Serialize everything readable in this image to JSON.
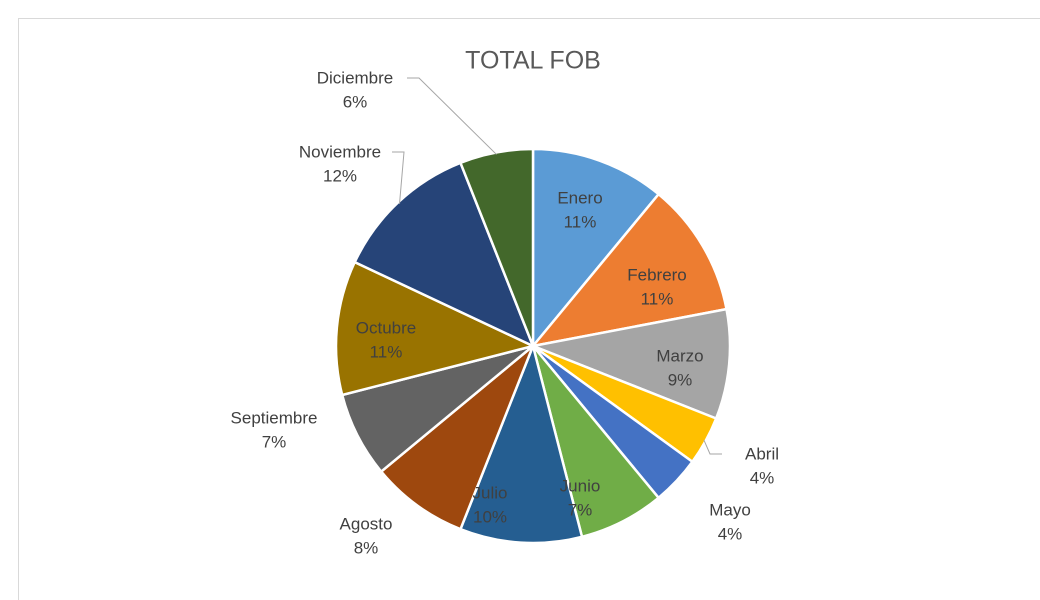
{
  "chart_data": {
    "type": "pie",
    "title": "TOTAL FOB",
    "categories": [
      "Enero",
      "Febrero",
      "Marzo",
      "Abril",
      "Mayo",
      "Junio",
      "Julio",
      "Agosto",
      "Septiembre",
      "Octubre",
      "Noviembre",
      "Diciembre"
    ],
    "values": [
      11,
      11,
      9,
      4,
      4,
      7,
      10,
      8,
      7,
      11,
      12,
      6
    ],
    "value_labels": [
      "11%",
      "11%",
      "9%",
      "4%",
      "4%",
      "7%",
      "10%",
      "8%",
      "7%",
      "11%",
      "12%",
      "6%"
    ],
    "colors": [
      "#5b9bd5",
      "#ed7d31",
      "#a5a5a5",
      "#ffc000",
      "#4472c4",
      "#70ad47",
      "#255e91",
      "#9e480e",
      "#636363",
      "#997300",
      "#264478",
      "#43682b"
    ]
  }
}
